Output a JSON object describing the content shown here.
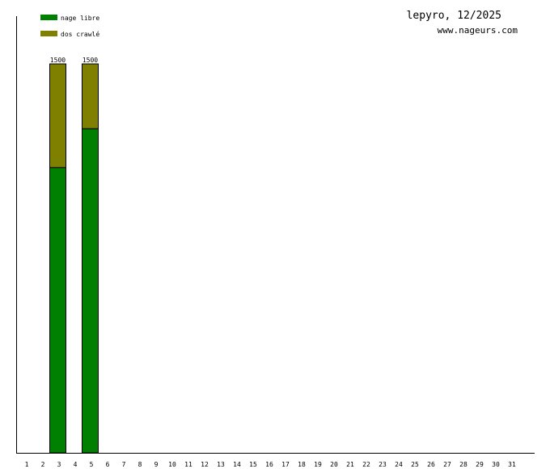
{
  "chart_data": {
    "type": "bar",
    "stacked": true,
    "title": "lepyro, 12/2025",
    "subtitle": "www.nageurs.com",
    "categories": [
      "1",
      "2",
      "3",
      "4",
      "5",
      "6",
      "7",
      "8",
      "9",
      "10",
      "11",
      "12",
      "13",
      "14",
      "15",
      "16",
      "17",
      "18",
      "19",
      "20",
      "21",
      "22",
      "23",
      "24",
      "25",
      "26",
      "27",
      "28",
      "29",
      "30",
      "31"
    ],
    "series": [
      {
        "name": "nage libre",
        "color": "#008000",
        "values": [
          0,
          0,
          1100,
          0,
          1250,
          0,
          0,
          0,
          0,
          0,
          0,
          0,
          0,
          0,
          0,
          0,
          0,
          0,
          0,
          0,
          0,
          0,
          0,
          0,
          0,
          0,
          0,
          0,
          0,
          0,
          0
        ]
      },
      {
        "name": "dos crawlé",
        "color": "#808000",
        "values": [
          0,
          0,
          400,
          0,
          250,
          0,
          0,
          0,
          0,
          0,
          0,
          0,
          0,
          0,
          0,
          0,
          0,
          0,
          0,
          0,
          0,
          0,
          0,
          0,
          0,
          0,
          0,
          0,
          0,
          0,
          0
        ]
      }
    ],
    "totals": [
      "",
      "",
      "1500",
      "",
      "1500",
      "",
      "",
      "",
      "",
      "",
      "",
      "",
      "",
      "",
      "",
      "",
      "",
      "",
      "",
      "",
      "",
      "",
      "",
      "",
      "",
      "",
      "",
      "",
      "",
      "",
      ""
    ],
    "ylim": [
      0,
      1500
    ],
    "legend_position": "top-left",
    "grid": false
  }
}
